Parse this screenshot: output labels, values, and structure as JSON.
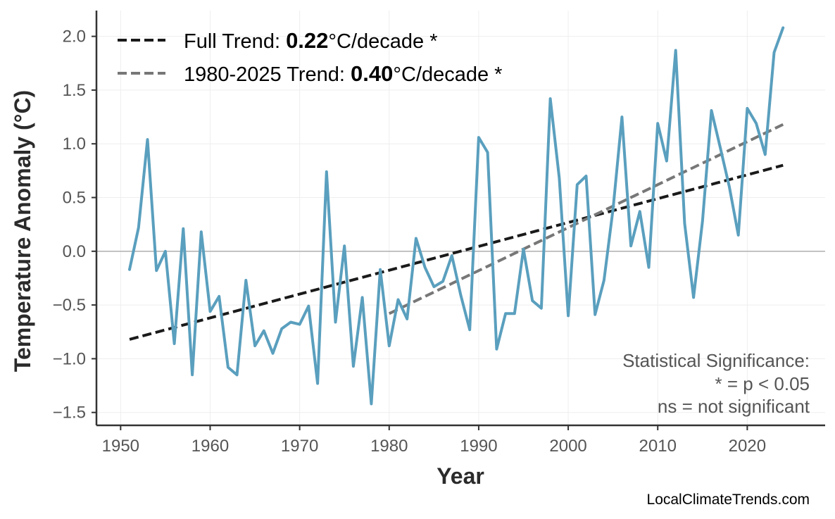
{
  "chart_data": {
    "type": "line",
    "title": "",
    "xlabel": "Year",
    "ylabel": "Temperature Anomaly (°C)",
    "xlim": [
      1947.3,
      2028.7
    ],
    "ylim": [
      -1.62,
      2.24
    ],
    "xticks": [
      1950,
      1960,
      1970,
      1980,
      1990,
      2000,
      2010,
      2020
    ],
    "xtick_labels": [
      "1950",
      "1960",
      "1970",
      "1980",
      "1990",
      "2000",
      "2010",
      "2020"
    ],
    "yticks": [
      -1.5,
      -1.0,
      -0.5,
      0.0,
      0.5,
      1.0,
      1.5,
      2.0
    ],
    "ytick_labels": [
      "−1.5",
      "−1.0",
      "−0.5",
      "0.0",
      "0.5",
      "1.0",
      "1.5",
      "2.0"
    ],
    "grid": true,
    "zero_line": true,
    "legend_position": "top-left",
    "colors": {
      "series": "#5a9fbe",
      "full_trend": "#1a1a1a",
      "recent_trend": "#777777",
      "zero_line": "#b5b5b5",
      "grid": "#eeeeee",
      "axis": "#333333"
    },
    "series": [
      {
        "x": [
          1951,
          1952,
          1953,
          1954,
          1955,
          1956,
          1957,
          1958,
          1959,
          1960,
          1961,
          1962,
          1963,
          1964,
          1965,
          1966,
          1967,
          1968,
          1969,
          1970,
          1971,
          1972,
          1973,
          1974,
          1975,
          1976,
          1977,
          1978,
          1979,
          1980,
          1981,
          1982,
          1983,
          1984,
          1985,
          1986,
          1987,
          1988,
          1989,
          1990,
          1991,
          1992,
          1993,
          1994,
          1995,
          1996,
          1997,
          1998,
          1999,
          2000,
          2001,
          2002,
          2003,
          2004,
          2005,
          2006,
          2007,
          2008,
          2009,
          2010,
          2011,
          2012,
          2013,
          2014,
          2015,
          2016,
          2017,
          2018,
          2019,
          2020,
          2021,
          2022,
          2023,
          2024
        ],
        "values": [
          -0.17,
          0.22,
          1.04,
          -0.18,
          0.0,
          -0.86,
          0.21,
          -1.15,
          0.18,
          -0.56,
          -0.42,
          -1.08,
          -1.15,
          -0.27,
          -0.88,
          -0.74,
          -0.95,
          -0.72,
          -0.66,
          -0.68,
          -0.51,
          -1.23,
          0.74,
          -0.66,
          0.05,
          -1.07,
          -0.43,
          -1.42,
          -0.17,
          -0.88,
          -0.45,
          -0.63,
          0.12,
          -0.15,
          -0.33,
          -0.28,
          -0.04,
          -0.41,
          -0.73,
          1.06,
          0.92,
          -0.91,
          -0.58,
          -0.58,
          0.02,
          -0.46,
          -0.53,
          1.42,
          0.68,
          -0.6,
          0.62,
          0.7,
          -0.59,
          -0.27,
          0.39,
          1.25,
          0.05,
          0.37,
          -0.15,
          1.19,
          0.84,
          1.87,
          0.26,
          -0.43,
          0.28,
          1.31,
          0.96,
          0.6,
          0.15,
          1.33,
          1.19,
          0.9,
          1.85,
          2.08
        ]
      }
    ],
    "trends": [
      {
        "name": "Full Trend",
        "x": [
          1951,
          2024
        ],
        "values": [
          -0.82,
          0.8
        ],
        "style": "dashed"
      },
      {
        "name": "1980-2025 Trend",
        "x": [
          1980,
          2024
        ],
        "values": [
          -0.58,
          1.18
        ],
        "style": "dashed"
      }
    ],
    "legend": [
      {
        "prefix": "Full Trend: ",
        "value": "0.22",
        "suffix": "°C/decade *",
        "color": "#1a1a1a"
      },
      {
        "prefix": "1980-2025 Trend: ",
        "value": "0.40",
        "suffix": "°C/decade *",
        "color": "#777777"
      }
    ],
    "annotation": [
      "Statistical Significance:",
      "* = p < 0.05",
      "ns = not significant"
    ],
    "credit": "LocalClimateTrends.com"
  }
}
